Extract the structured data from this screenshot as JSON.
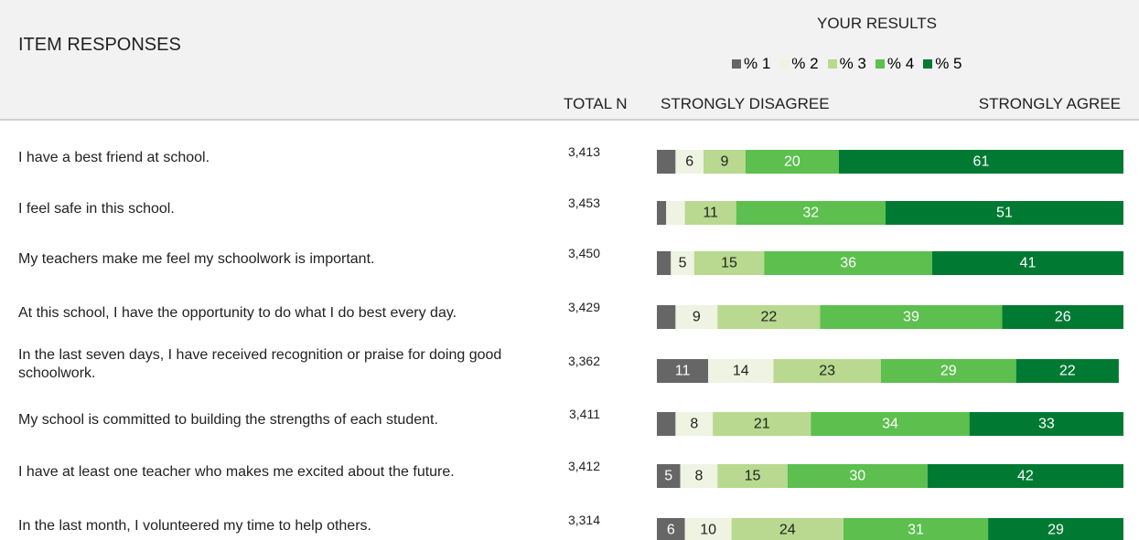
{
  "chart_data": {
    "type": "bar",
    "title": "ITEM RESPONSES",
    "legend_title": "YOUR RESULTS",
    "total_header": "TOTAL N",
    "scale_left": "STRONGLY DISAGREE",
    "scale_right": "STRONGLY AGREE",
    "orientation": "horizontal",
    "stacked": true,
    "xlim": [
      0,
      100
    ],
    "categories": [
      "I have a best friend at school.",
      "I feel safe in this school.",
      "My teachers make me feel my schoolwork is important.",
      "At this school, I have the opportunity to do what I do best every day.",
      "In the last seven days, I have received recognition or praise for doing good schoolwork.",
      "My school is committed to building the strengths of each student.",
      "I have at least one teacher who makes me excited about the future.",
      "In the last month, I volunteered my time to help others."
    ],
    "total_n": [
      "3,413",
      "3,453",
      "3,450",
      "3,429",
      "3,362",
      "3,411",
      "3,412",
      "3,314"
    ],
    "series": [
      {
        "name": "% 1",
        "color": "#666666",
        "values": [
          4,
          2,
          3,
          4,
          11,
          4,
          5,
          6
        ],
        "value_labels": [
          null,
          null,
          null,
          null,
          "11",
          null,
          "5",
          "6"
        ]
      },
      {
        "name": "% 2",
        "color": "#eef3e2",
        "values": [
          6,
          4,
          5,
          9,
          14,
          8,
          8,
          10
        ],
        "value_labels": [
          "6",
          null,
          "5",
          "9",
          "14",
          "8",
          "8",
          "10"
        ]
      },
      {
        "name": "% 3",
        "color": "#b8d98f",
        "values": [
          9,
          11,
          15,
          22,
          23,
          21,
          15,
          24
        ],
        "value_labels": [
          "9",
          "11",
          "15",
          "22",
          "23",
          "21",
          "15",
          "24"
        ]
      },
      {
        "name": "% 4",
        "color": "#5cbf4e",
        "values": [
          20,
          32,
          36,
          39,
          29,
          34,
          30,
          31
        ],
        "value_labels": [
          "20",
          "32",
          "36",
          "39",
          "29",
          "34",
          "30",
          "31"
        ]
      },
      {
        "name": "% 5",
        "color": "#007a33",
        "values": [
          61,
          51,
          41,
          26,
          22,
          33,
          42,
          29
        ],
        "value_labels": [
          "61",
          "51",
          "41",
          "26",
          "22",
          "33",
          "42",
          "29"
        ]
      }
    ]
  }
}
